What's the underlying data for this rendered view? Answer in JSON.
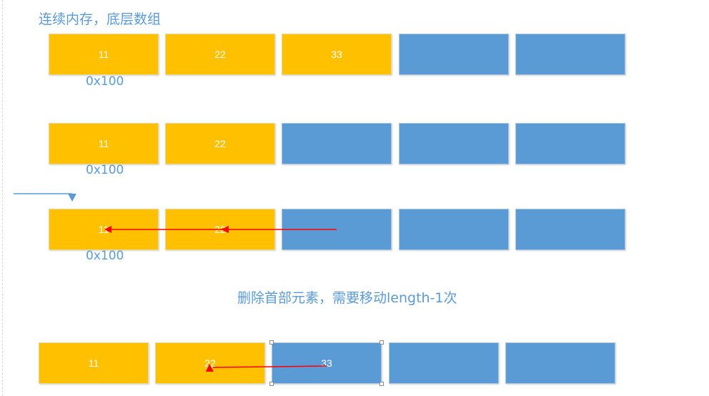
{
  "title": "连续内存，底层数组",
  "caption": "删除首部元素，需要移动length-1次",
  "rows": [
    {
      "cells": [
        {
          "value": "11",
          "fill": "yellow"
        },
        {
          "value": "22",
          "fill": "yellow"
        },
        {
          "value": "33",
          "fill": "yellow"
        },
        {
          "value": "",
          "fill": "blue"
        },
        {
          "value": "",
          "fill": "blue"
        }
      ],
      "address": "0x100"
    },
    {
      "cells": [
        {
          "value": "11",
          "fill": "yellow"
        },
        {
          "value": "22",
          "fill": "yellow"
        },
        {
          "value": "",
          "fill": "blue"
        },
        {
          "value": "",
          "fill": "blue"
        },
        {
          "value": "",
          "fill": "blue"
        }
      ],
      "address": "0x100"
    },
    {
      "cells": [
        {
          "value": "11",
          "fill": "yellow"
        },
        {
          "value": "22",
          "fill": "yellow"
        },
        {
          "value": "",
          "fill": "blue"
        },
        {
          "value": "",
          "fill": "blue"
        },
        {
          "value": "",
          "fill": "blue"
        }
      ],
      "address": "0x100"
    },
    {
      "cells": [
        {
          "value": "11",
          "fill": "yellow"
        },
        {
          "value": "22",
          "fill": "yellow"
        },
        {
          "value": "33",
          "fill": "blue"
        },
        {
          "value": "",
          "fill": "blue"
        },
        {
          "value": "",
          "fill": "blue"
        }
      ],
      "address": ""
    }
  ],
  "colors": {
    "occupied": "#ffc000",
    "empty": "#5b9bd5",
    "label": "#5b9bd5",
    "arrow": "#ff0000"
  }
}
